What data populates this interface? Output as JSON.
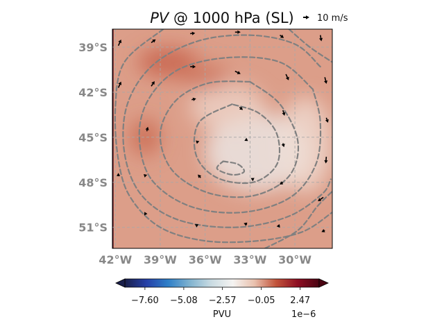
{
  "chart_data": {
    "type": "heatmap",
    "title_var": "PV",
    "title_rest": " @ 1000 hPa (SL)",
    "quiver_key_label": "10 m/s",
    "quiver_key_value": 10,
    "lon_range": [
      -42.2,
      -27.5
    ],
    "lat_range": [
      -52.4,
      -37.8
    ],
    "x_ticks": [
      -42,
      -39,
      -36,
      -33,
      -30
    ],
    "x_tick_labels": [
      "42°W",
      "39°W",
      "36°W",
      "33°W",
      "30°W"
    ],
    "y_ticks": [
      -39,
      -42,
      -45,
      -48,
      -51
    ],
    "y_tick_labels": [
      "39°S",
      "42°S",
      "45°S",
      "48°S",
      "51°S"
    ],
    "grid": true,
    "colorbar": {
      "label": "PVU",
      "exponent_label": "1e−6",
      "ticks": [
        -7.6,
        -5.08,
        -2.57,
        -0.05,
        2.47
      ],
      "tick_labels": [
        "−7.60",
        "−5.08",
        "−2.57",
        "−0.05",
        "2.47"
      ],
      "range": [
        -8.9,
        3.7
      ],
      "extend": "both",
      "colormap": [
        "#1a1f4a",
        "#2640a8",
        "#2e7fc8",
        "#7fb2cf",
        "#c9dbe2",
        "#f5f3f1",
        "#e9c1ae",
        "#c2543b",
        "#8e0e22",
        "#4a0412"
      ]
    },
    "background_value": -0.05,
    "contour_color": "#808080",
    "contours": [
      {
        "name": "outer",
        "points": [
          [
            -38.8,
            -37.8
          ],
          [
            -41.4,
            -40.0
          ],
          [
            -42.0,
            -43.0
          ],
          [
            -41.8,
            -46.5
          ],
          [
            -41.0,
            -49.0
          ],
          [
            -39.0,
            -51.0
          ],
          [
            -36.0,
            -51.9
          ],
          [
            -32.5,
            -51.9
          ],
          [
            -29.5,
            -51.3
          ],
          [
            -27.5,
            -50.0
          ]
        ]
      },
      {
        "name": "ring-2",
        "points": [
          [
            -28.3,
            -40.3
          ],
          [
            -30.0,
            -38.8
          ],
          [
            -33.0,
            -38.2
          ],
          [
            -36.5,
            -38.6
          ],
          [
            -39.5,
            -40.2
          ],
          [
            -41.2,
            -42.8
          ],
          [
            -41.4,
            -46.0
          ],
          [
            -40.3,
            -48.8
          ],
          [
            -37.8,
            -50.5
          ],
          [
            -34.0,
            -51.0
          ],
          [
            -30.5,
            -50.3
          ],
          [
            -28.2,
            -48.8
          ],
          [
            -27.6,
            -47.8
          ]
        ]
      },
      {
        "name": "ring-3",
        "points": [
          [
            -28.8,
            -41.8
          ],
          [
            -31.0,
            -40.0
          ],
          [
            -34.5,
            -39.7
          ],
          [
            -37.8,
            -40.5
          ],
          [
            -39.8,
            -42.5
          ],
          [
            -40.4,
            -45.0
          ],
          [
            -39.6,
            -47.8
          ],
          [
            -37.0,
            -49.6
          ],
          [
            -33.5,
            -50.0
          ],
          [
            -30.3,
            -49.0
          ],
          [
            -28.6,
            -46.8
          ],
          [
            -28.3,
            -44.0
          ],
          [
            -28.8,
            -41.8
          ]
        ]
      },
      {
        "name": "ring-4",
        "points": [
          [
            -33.0,
            -41.3
          ],
          [
            -35.8,
            -41.4
          ],
          [
            -38.0,
            -42.6
          ],
          [
            -39.0,
            -44.8
          ],
          [
            -38.2,
            -47.2
          ],
          [
            -35.8,
            -48.7
          ],
          [
            -32.8,
            -48.9
          ],
          [
            -30.4,
            -47.6
          ],
          [
            -29.8,
            -45.3
          ],
          [
            -31.0,
            -42.8
          ],
          [
            -33.0,
            -41.3
          ]
        ]
      },
      {
        "name": "ring-5",
        "points": [
          [
            -34.2,
            -42.8
          ],
          [
            -36.4,
            -44.0
          ],
          [
            -36.6,
            -46.2
          ],
          [
            -35.2,
            -47.7
          ],
          [
            -32.8,
            -48.0
          ],
          [
            -31.2,
            -46.8
          ],
          [
            -31.2,
            -44.8
          ],
          [
            -32.4,
            -43.4
          ],
          [
            -34.2,
            -42.8
          ]
        ]
      },
      {
        "name": "inner",
        "points": [
          [
            -34.8,
            -46.6
          ],
          [
            -33.8,
            -46.8
          ],
          [
            -33.4,
            -47.3
          ],
          [
            -34.2,
            -47.5
          ],
          [
            -35.2,
            -47.1
          ],
          [
            -34.8,
            -46.6
          ]
        ]
      },
      {
        "name": "southeast",
        "points": [
          [
            -32.0,
            -52.4
          ],
          [
            -29.8,
            -51.2
          ],
          [
            -28.5,
            -49.6
          ],
          [
            -27.5,
            -48.6
          ]
        ]
      },
      {
        "name": "northeast",
        "points": [
          [
            -30.4,
            -37.8
          ],
          [
            -29.0,
            -39.0
          ],
          [
            -27.5,
            -40.0
          ]
        ]
      }
    ],
    "wind_vectors": [
      {
        "lon": -41.8,
        "lat": -38.9,
        "u": 5,
        "v": 11
      },
      {
        "lon": -41.8,
        "lat": -41.7,
        "u": 5,
        "v": 11
      },
      {
        "lon": -41.8,
        "lat": -47.6,
        "u": 0,
        "v": 6
      },
      {
        "lon": -39.6,
        "lat": -38.7,
        "u": 8,
        "v": 6
      },
      {
        "lon": -39.6,
        "lat": -41.6,
        "u": 6,
        "v": 9
      },
      {
        "lon": -39.9,
        "lat": -44.6,
        "u": 2,
        "v": 8
      },
      {
        "lon": -40.0,
        "lat": -47.5,
        "u": -1,
        "v": -5
      },
      {
        "lon": -40.0,
        "lat": -50.1,
        "u": -2,
        "v": -3
      },
      {
        "lon": -37.0,
        "lat": -38.1,
        "u": 9,
        "v": 1
      },
      {
        "lon": -37.0,
        "lat": -40.3,
        "u": 10,
        "v": 0
      },
      {
        "lon": -36.9,
        "lat": -42.5,
        "u": 8,
        "v": 2
      },
      {
        "lon": -36.5,
        "lat": -45.3,
        "u": 3,
        "v": 1
      },
      {
        "lon": -36.3,
        "lat": -47.7,
        "u": -5,
        "v": 6
      },
      {
        "lon": -36.5,
        "lat": -50.9,
        "u": -5,
        "v": 3
      },
      {
        "lon": -34.0,
        "lat": -38.0,
        "u": 10,
        "v": 0
      },
      {
        "lon": -34.0,
        "lat": -40.6,
        "u": 10,
        "v": -5
      },
      {
        "lon": -33.7,
        "lat": -43.0,
        "u": 6,
        "v": -5
      },
      {
        "lon": -33.3,
        "lat": -45.2,
        "u": -2,
        "v": -1
      },
      {
        "lon": -32.8,
        "lat": -47.8,
        "u": -4,
        "v": 2
      },
      {
        "lon": -33.2,
        "lat": -50.8,
        "u": -6,
        "v": 2
      },
      {
        "lon": -31.0,
        "lat": -38.2,
        "u": 7,
        "v": -5
      },
      {
        "lon": -30.6,
        "lat": -40.8,
        "u": 5,
        "v": -11
      },
      {
        "lon": -30.8,
        "lat": -43.2,
        "u": 3,
        "v": -10
      },
      {
        "lon": -30.8,
        "lat": -45.4,
        "u": 2,
        "v": -7
      },
      {
        "lon": -30.8,
        "lat": -48.0,
        "u": -6,
        "v": -4
      },
      {
        "lon": -31.0,
        "lat": -50.9,
        "u": -6,
        "v": -1
      },
      {
        "lon": -28.3,
        "lat": -38.2,
        "u": 2,
        "v": -11
      },
      {
        "lon": -28.0,
        "lat": -41.0,
        "u": 3,
        "v": -12
      },
      {
        "lon": -27.9,
        "lat": -43.7,
        "u": 3,
        "v": -9
      },
      {
        "lon": -27.9,
        "lat": -46.3,
        "u": -1,
        "v": -12
      },
      {
        "lon": -28.1,
        "lat": -49.0,
        "u": -10,
        "v": -7
      },
      {
        "lon": -28.0,
        "lat": -51.2,
        "u": -6,
        "v": -3
      }
    ],
    "pv_features": [
      {
        "name": "negative-core",
        "lon": -32.5,
        "lat": -46.0,
        "rx": 3.5,
        "ry": 2.6,
        "value": -2.2
      },
      {
        "name": "negative-north",
        "lon": -34.5,
        "lat": -43.0,
        "rx": 2.5,
        "ry": 1.6,
        "value": -1.1
      },
      {
        "name": "negative-east",
        "lon": -29.3,
        "lat": -45.5,
        "rx": 1.8,
        "ry": 3.2,
        "value": -1.3
      },
      {
        "name": "positive-nw",
        "lon": -38.5,
        "lat": -40.0,
        "rx": 2.0,
        "ry": 1.0,
        "value": 0.8
      },
      {
        "name": "positive-west",
        "lon": -40.0,
        "lat": -45.0,
        "rx": 1.0,
        "ry": 1.2,
        "value": 0.7
      },
      {
        "name": "positive-ne",
        "lon": -36.0,
        "lat": -41.0,
        "rx": 1.6,
        "ry": 0.9,
        "value": 0.5
      }
    ],
    "edge_strip_value": 3.7
  }
}
